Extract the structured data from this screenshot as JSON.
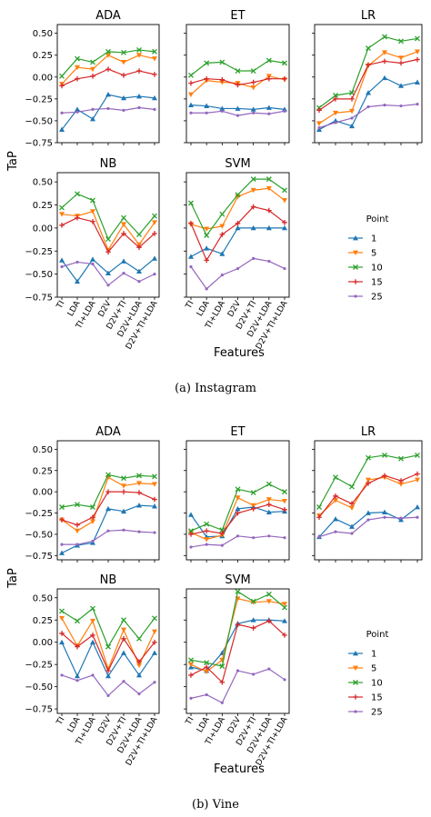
{
  "figure": {
    "features": [
      "TI",
      "LDA",
      "TI+LDA",
      "D2V",
      "D2V+TI",
      "D2V+LDA",
      "D2V+TI+LDA"
    ],
    "ylabel": "TaP",
    "xlabel": "Features",
    "legend_title": "Point",
    "yticks": [
      "0.50",
      "0.25",
      "0.00",
      "−0.25",
      "−0.50",
      "−0.75"
    ],
    "colors": {
      "1": "#1f77b4",
      "5": "#ff7f0e",
      "10": "#2ca02c",
      "15": "#d62728",
      "25": "#9467bd"
    },
    "markers": {
      "1": "triangle",
      "5": "triangle-down",
      "10": "x",
      "15": "plus",
      "25": "dot"
    }
  },
  "captions": {
    "a_label": "(a)",
    "a_text": "Instagram",
    "b_label": "(b)",
    "b_text": "Vine"
  },
  "chart_data": [
    {
      "type": "line",
      "group": "Instagram",
      "title": "ADA",
      "ylim": [
        -0.75,
        0.6
      ],
      "series": [
        {
          "name": "1",
          "values": [
            -0.6,
            -0.37,
            -0.48,
            -0.2,
            -0.24,
            -0.22,
            -0.24
          ]
        },
        {
          "name": "5",
          "values": [
            -0.08,
            0.11,
            0.09,
            0.25,
            0.17,
            0.25,
            0.21
          ]
        },
        {
          "name": "10",
          "values": [
            0.01,
            0.21,
            0.17,
            0.29,
            0.28,
            0.31,
            0.29
          ]
        },
        {
          "name": "15",
          "values": [
            -0.1,
            -0.02,
            0.01,
            0.09,
            0.02,
            0.07,
            0.03
          ]
        },
        {
          "name": "25",
          "values": [
            -0.41,
            -0.4,
            -0.37,
            -0.36,
            -0.38,
            -0.35,
            -0.37
          ]
        }
      ]
    },
    {
      "type": "line",
      "group": "Instagram",
      "title": "ET",
      "ylim": [
        -0.75,
        0.6
      ],
      "series": [
        {
          "name": "1",
          "values": [
            -0.32,
            -0.33,
            -0.36,
            -0.36,
            -0.37,
            -0.35,
            -0.37
          ]
        },
        {
          "name": "5",
          "values": [
            -0.2,
            -0.04,
            -0.06,
            -0.07,
            -0.12,
            0.01,
            -0.03
          ]
        },
        {
          "name": "10",
          "values": [
            0.02,
            0.16,
            0.17,
            0.07,
            0.07,
            0.19,
            0.16
          ]
        },
        {
          "name": "15",
          "values": [
            -0.07,
            -0.02,
            -0.03,
            -0.09,
            -0.06,
            -0.02,
            -0.02
          ]
        },
        {
          "name": "25",
          "values": [
            -0.41,
            -0.41,
            -0.39,
            -0.44,
            -0.41,
            -0.42,
            -0.39
          ]
        }
      ]
    },
    {
      "type": "line",
      "group": "Instagram",
      "title": "LR",
      "ylim": [
        -0.75,
        0.6
      ],
      "series": [
        {
          "name": "1",
          "values": [
            -0.6,
            -0.5,
            -0.56,
            -0.18,
            -0.01,
            -0.1,
            -0.06
          ]
        },
        {
          "name": "5",
          "values": [
            -0.53,
            -0.41,
            -0.39,
            0.13,
            0.28,
            0.22,
            0.29
          ]
        },
        {
          "name": "10",
          "values": [
            -0.35,
            -0.21,
            -0.18,
            0.33,
            0.46,
            0.41,
            0.44
          ]
        },
        {
          "name": "15",
          "values": [
            -0.38,
            -0.25,
            -0.25,
            0.14,
            0.18,
            0.16,
            0.2
          ]
        },
        {
          "name": "25",
          "values": [
            -0.58,
            -0.52,
            -0.47,
            -0.34,
            -0.32,
            -0.33,
            -0.31
          ]
        }
      ]
    },
    {
      "type": "line",
      "group": "Instagram",
      "title": "NB",
      "ylim": [
        -0.75,
        0.6
      ],
      "series": [
        {
          "name": "1",
          "values": [
            -0.35,
            -0.58,
            -0.34,
            -0.49,
            -0.36,
            -0.47,
            -0.33
          ]
        },
        {
          "name": "5",
          "values": [
            0.15,
            0.13,
            0.18,
            -0.24,
            0.04,
            -0.18,
            0.06
          ]
        },
        {
          "name": "10",
          "values": [
            0.22,
            0.37,
            0.3,
            -0.12,
            0.11,
            -0.07,
            0.13
          ]
        },
        {
          "name": "15",
          "values": [
            0.03,
            0.11,
            0.07,
            -0.26,
            -0.06,
            -0.21,
            -0.06
          ]
        },
        {
          "name": "25",
          "values": [
            -0.42,
            -0.37,
            -0.39,
            -0.62,
            -0.49,
            -0.58,
            -0.5
          ]
        }
      ]
    },
    {
      "type": "line",
      "group": "Instagram",
      "title": "SVM",
      "ylim": [
        -0.75,
        0.6
      ],
      "series": [
        {
          "name": "1",
          "values": [
            -0.31,
            -0.22,
            -0.28,
            0.0,
            0.0,
            0.0,
            0.0
          ]
        },
        {
          "name": "5",
          "values": [
            0.04,
            -0.01,
            0.02,
            0.34,
            0.41,
            0.43,
            0.3
          ]
        },
        {
          "name": "10",
          "values": [
            0.27,
            -0.08,
            0.15,
            0.36,
            0.53,
            0.53,
            0.41
          ]
        },
        {
          "name": "15",
          "values": [
            0.05,
            -0.35,
            -0.07,
            0.05,
            0.23,
            0.19,
            0.06
          ]
        },
        {
          "name": "25",
          "values": [
            -0.42,
            -0.66,
            -0.51,
            -0.44,
            -0.33,
            -0.36,
            -0.44
          ]
        }
      ]
    },
    {
      "type": "line",
      "group": "Vine",
      "title": "ADA",
      "ylim": [
        -0.8,
        0.6
      ],
      "series": [
        {
          "name": "1",
          "values": [
            -0.72,
            -0.63,
            -0.6,
            -0.2,
            -0.23,
            -0.16,
            -0.17
          ]
        },
        {
          "name": "5",
          "values": [
            -0.33,
            -0.46,
            -0.35,
            0.17,
            0.07,
            0.1,
            0.09
          ]
        },
        {
          "name": "10",
          "values": [
            -0.18,
            -0.15,
            -0.18,
            0.2,
            0.16,
            0.19,
            0.18
          ]
        },
        {
          "name": "15",
          "values": [
            -0.33,
            -0.39,
            -0.3,
            0.0,
            0.0,
            -0.01,
            -0.09
          ]
        },
        {
          "name": "25",
          "values": [
            -0.62,
            -0.62,
            -0.58,
            -0.46,
            -0.45,
            -0.47,
            -0.48
          ]
        }
      ]
    },
    {
      "type": "line",
      "group": "Vine",
      "title": "ET",
      "ylim": [
        -0.8,
        0.6
      ],
      "series": [
        {
          "name": "1",
          "values": [
            -0.27,
            -0.53,
            -0.52,
            -0.2,
            -0.18,
            -0.24,
            -0.23
          ]
        },
        {
          "name": "5",
          "values": [
            -0.48,
            -0.56,
            -0.51,
            -0.07,
            -0.16,
            -0.09,
            -0.11
          ]
        },
        {
          "name": "10",
          "values": [
            -0.46,
            -0.38,
            -0.45,
            0.03,
            -0.01,
            0.09,
            0.0
          ]
        },
        {
          "name": "15",
          "values": [
            -0.5,
            -0.46,
            -0.49,
            -0.25,
            -0.2,
            -0.15,
            -0.21
          ]
        },
        {
          "name": "25",
          "values": [
            -0.65,
            -0.62,
            -0.63,
            -0.52,
            -0.54,
            -0.52,
            -0.54
          ]
        }
      ]
    },
    {
      "type": "line",
      "group": "Vine",
      "title": "LR",
      "ylim": [
        -0.8,
        0.6
      ],
      "series": [
        {
          "name": "1",
          "values": [
            -0.53,
            -0.32,
            -0.41,
            -0.25,
            -0.24,
            -0.33,
            -0.18
          ]
        },
        {
          "name": "5",
          "values": [
            -0.28,
            -0.1,
            -0.19,
            0.14,
            0.17,
            0.09,
            0.14
          ]
        },
        {
          "name": "10",
          "values": [
            -0.18,
            0.17,
            0.06,
            0.4,
            0.43,
            0.39,
            0.43
          ]
        },
        {
          "name": "15",
          "values": [
            -0.3,
            -0.05,
            -0.14,
            0.1,
            0.19,
            0.13,
            0.21
          ]
        },
        {
          "name": "25",
          "values": [
            -0.53,
            -0.47,
            -0.49,
            -0.33,
            -0.3,
            -0.31,
            -0.3
          ]
        }
      ]
    },
    {
      "type": "line",
      "group": "Vine",
      "title": "NB",
      "ylim": [
        -0.8,
        0.6
      ],
      "series": [
        {
          "name": "1",
          "values": [
            0.0,
            -0.38,
            0.0,
            -0.38,
            -0.12,
            -0.37,
            -0.12
          ]
        },
        {
          "name": "5",
          "values": [
            0.27,
            -0.04,
            0.24,
            -0.3,
            0.14,
            -0.26,
            0.12
          ]
        },
        {
          "name": "10",
          "values": [
            0.35,
            0.24,
            0.38,
            -0.05,
            0.25,
            0.04,
            0.27
          ]
        },
        {
          "name": "15",
          "values": [
            0.1,
            -0.05,
            0.08,
            -0.32,
            0.04,
            -0.22,
            0.0
          ]
        },
        {
          "name": "25",
          "values": [
            -0.37,
            -0.43,
            -0.37,
            -0.6,
            -0.44,
            -0.58,
            -0.45
          ]
        }
      ]
    },
    {
      "type": "line",
      "group": "Vine",
      "title": "SVM",
      "ylim": [
        -0.8,
        0.6
      ],
      "series": [
        {
          "name": "1",
          "values": [
            -0.28,
            -0.32,
            -0.12,
            0.21,
            0.25,
            0.25,
            0.24
          ]
        },
        {
          "name": "5",
          "values": [
            -0.25,
            -0.33,
            -0.2,
            0.49,
            0.45,
            0.46,
            0.43
          ]
        },
        {
          "name": "10",
          "values": [
            -0.2,
            -0.23,
            -0.27,
            0.57,
            0.46,
            0.54,
            0.39
          ]
        },
        {
          "name": "15",
          "values": [
            -0.37,
            -0.28,
            -0.45,
            0.2,
            0.16,
            0.24,
            0.08
          ]
        },
        {
          "name": "25",
          "values": [
            -0.63,
            -0.59,
            -0.68,
            -0.32,
            -0.36,
            -0.3,
            -0.42
          ]
        }
      ]
    }
  ]
}
